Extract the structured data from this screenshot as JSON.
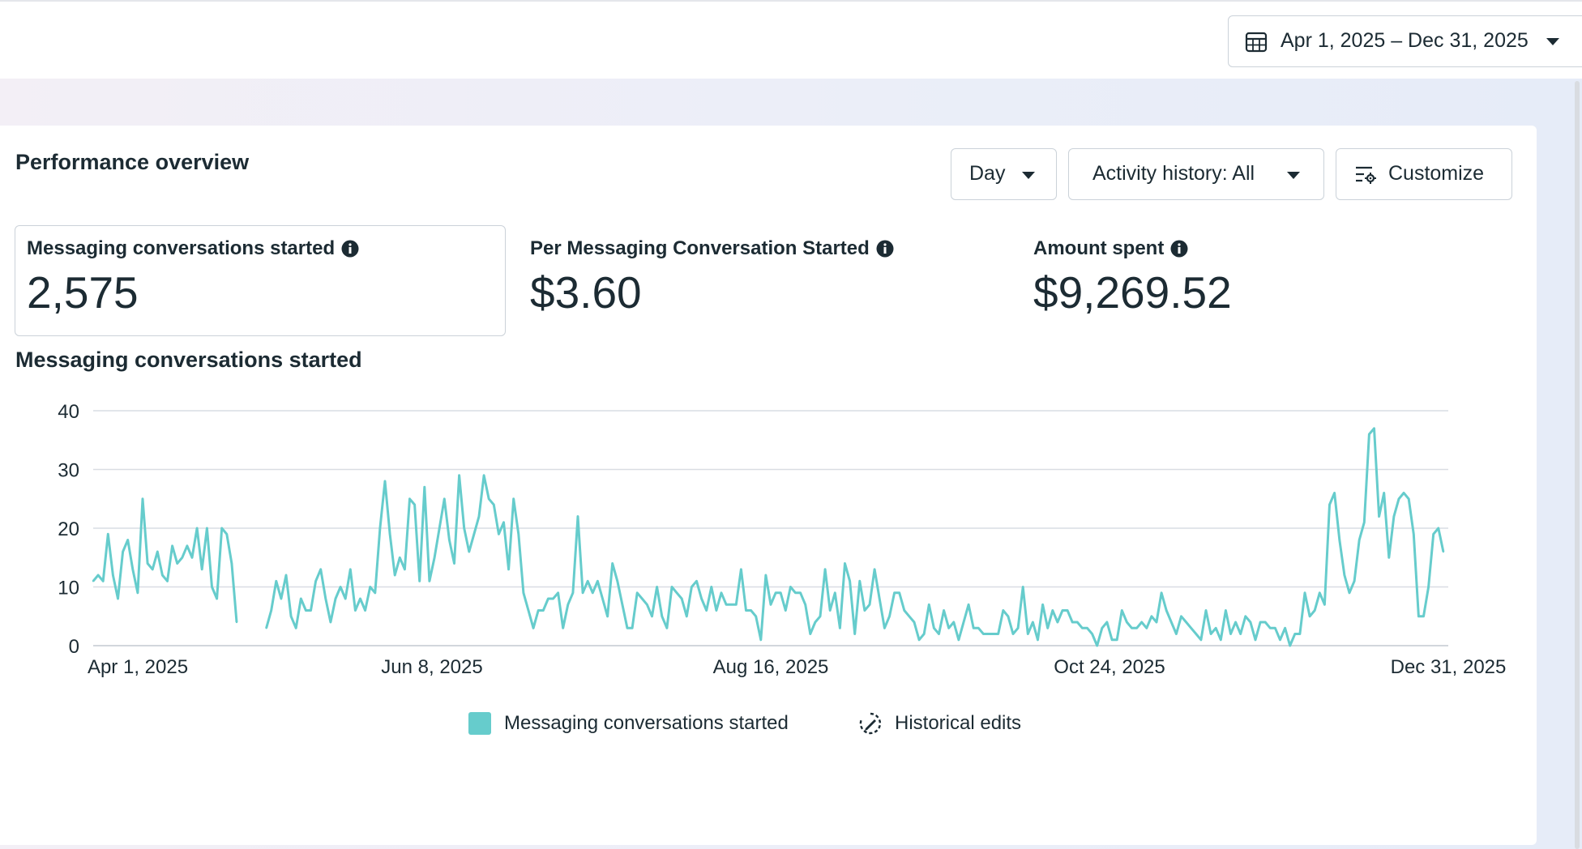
{
  "header": {
    "date_range_label": "Apr 1, 2025 – Dec 31, 2025",
    "calendar_icon": "calendar-icon",
    "caret_icon": "caret-down-icon"
  },
  "card": {
    "title": "Performance overview",
    "controls": {
      "granularity_label": "Day",
      "activity_label": "Activity history: All",
      "customize_label": "Customize",
      "customize_icon": "customize-sliders-icon"
    },
    "metrics": [
      {
        "label": "Messaging conversations started",
        "value": "2,575",
        "info_icon": "info-icon"
      },
      {
        "label": "Per Messaging Conversation Started",
        "value": "$3.60",
        "info_icon": "info-icon"
      },
      {
        "label": "Amount spent",
        "value": "$9,269.52",
        "info_icon": "info-icon"
      }
    ]
  },
  "chart_title": "Messaging conversations started",
  "legend": {
    "series_label": "Messaging conversations started",
    "historical_label": "Historical edits",
    "historical_icon": "historical-edits-icon"
  },
  "colors": {
    "series": "#66cccc",
    "grid": "#d9dde3",
    "text": "#1c2b33",
    "border": "#cbd2d9"
  },
  "chart_data": {
    "type": "line",
    "title": "Messaging conversations started",
    "xlabel": "",
    "ylabel": "",
    "ylim": [
      0,
      40
    ],
    "y_ticks": [
      0,
      10,
      20,
      30,
      40
    ],
    "x_tick_labels": [
      "Apr 1, 2025",
      "Jun 8, 2025",
      "Aug 16, 2025",
      "Oct 24, 2025",
      "Dec 31, 2025"
    ],
    "x_start": "2025-04-01",
    "grid": true,
    "legend_position": "bottom",
    "series": [
      {
        "name": "Messaging conversations started",
        "color": "#66cccc",
        "points": [
          [
            "2025-04-01",
            11
          ],
          [
            "2025-04-02",
            12
          ],
          [
            "2025-04-03",
            11
          ],
          [
            "2025-04-04",
            19
          ],
          [
            "2025-04-05",
            12
          ],
          [
            "2025-04-06",
            8
          ],
          [
            "2025-04-07",
            16
          ],
          [
            "2025-04-08",
            18
          ],
          [
            "2025-04-09",
            13
          ],
          [
            "2025-04-10",
            9
          ],
          [
            "2025-04-11",
            25
          ],
          [
            "2025-04-12",
            14
          ],
          [
            "2025-04-13",
            13
          ],
          [
            "2025-04-14",
            16
          ],
          [
            "2025-04-15",
            12
          ],
          [
            "2025-04-16",
            11
          ],
          [
            "2025-04-17",
            17
          ],
          [
            "2025-04-18",
            14
          ],
          [
            "2025-04-19",
            15
          ],
          [
            "2025-04-20",
            17
          ],
          [
            "2025-04-21",
            15
          ],
          [
            "2025-04-22",
            20
          ],
          [
            "2025-04-23",
            13
          ],
          [
            "2025-04-24",
            20
          ],
          [
            "2025-04-25",
            10
          ],
          [
            "2025-04-26",
            8
          ],
          [
            "2025-04-27",
            20
          ],
          [
            "2025-04-28",
            19
          ],
          [
            "2025-04-29",
            14
          ],
          [
            "2025-04-30",
            4
          ],
          [
            "2025-05-06",
            3
          ],
          [
            "2025-05-07",
            6
          ],
          [
            "2025-05-08",
            11
          ],
          [
            "2025-05-09",
            8
          ],
          [
            "2025-05-10",
            12
          ],
          [
            "2025-05-11",
            5
          ],
          [
            "2025-05-12",
            3
          ],
          [
            "2025-05-13",
            8
          ],
          [
            "2025-05-14",
            6
          ],
          [
            "2025-05-15",
            6
          ],
          [
            "2025-05-16",
            11
          ],
          [
            "2025-05-17",
            13
          ],
          [
            "2025-05-18",
            8
          ],
          [
            "2025-05-19",
            4
          ],
          [
            "2025-05-20",
            8
          ],
          [
            "2025-05-21",
            10
          ],
          [
            "2025-05-22",
            8
          ],
          [
            "2025-05-23",
            13
          ],
          [
            "2025-05-24",
            6
          ],
          [
            "2025-05-25",
            8
          ],
          [
            "2025-05-26",
            6
          ],
          [
            "2025-05-27",
            10
          ],
          [
            "2025-05-28",
            9
          ],
          [
            "2025-05-29",
            20
          ],
          [
            "2025-05-30",
            28
          ],
          [
            "2025-05-31",
            19
          ],
          [
            "2025-06-01",
            12
          ],
          [
            "2025-06-02",
            15
          ],
          [
            "2025-06-03",
            13
          ],
          [
            "2025-06-04",
            25
          ],
          [
            "2025-06-05",
            24
          ],
          [
            "2025-06-06",
            11
          ],
          [
            "2025-06-07",
            27
          ],
          [
            "2025-06-08",
            11
          ],
          [
            "2025-06-09",
            15
          ],
          [
            "2025-06-10",
            20
          ],
          [
            "2025-06-11",
            25
          ],
          [
            "2025-06-12",
            18
          ],
          [
            "2025-06-13",
            14
          ],
          [
            "2025-06-14",
            29
          ],
          [
            "2025-06-15",
            20
          ],
          [
            "2025-06-16",
            16
          ],
          [
            "2025-06-17",
            19
          ],
          [
            "2025-06-18",
            22
          ],
          [
            "2025-06-19",
            29
          ],
          [
            "2025-06-20",
            25
          ],
          [
            "2025-06-21",
            24
          ],
          [
            "2025-06-22",
            19
          ],
          [
            "2025-06-23",
            21
          ],
          [
            "2025-06-24",
            13
          ],
          [
            "2025-06-25",
            25
          ],
          [
            "2025-06-26",
            19
          ],
          [
            "2025-06-27",
            9
          ],
          [
            "2025-06-28",
            6
          ],
          [
            "2025-06-29",
            3
          ],
          [
            "2025-06-30",
            6
          ],
          [
            "2025-07-01",
            6
          ],
          [
            "2025-07-02",
            8
          ],
          [
            "2025-07-03",
            8
          ],
          [
            "2025-07-04",
            9
          ],
          [
            "2025-07-05",
            3
          ],
          [
            "2025-07-06",
            7
          ],
          [
            "2025-07-07",
            9
          ],
          [
            "2025-07-08",
            22
          ],
          [
            "2025-07-09",
            9
          ],
          [
            "2025-07-10",
            11
          ],
          [
            "2025-07-11",
            9
          ],
          [
            "2025-07-12",
            11
          ],
          [
            "2025-07-13",
            8
          ],
          [
            "2025-07-14",
            5
          ],
          [
            "2025-07-15",
            14
          ],
          [
            "2025-07-16",
            11
          ],
          [
            "2025-07-17",
            7
          ],
          [
            "2025-07-18",
            3
          ],
          [
            "2025-07-19",
            3
          ],
          [
            "2025-07-20",
            9
          ],
          [
            "2025-07-21",
            8
          ],
          [
            "2025-07-22",
            7
          ],
          [
            "2025-07-23",
            5
          ],
          [
            "2025-07-24",
            10
          ],
          [
            "2025-07-25",
            5
          ],
          [
            "2025-07-26",
            3
          ],
          [
            "2025-07-27",
            10
          ],
          [
            "2025-07-28",
            9
          ],
          [
            "2025-07-29",
            8
          ],
          [
            "2025-07-30",
            5
          ],
          [
            "2025-07-31",
            10
          ],
          [
            "2025-08-01",
            11
          ],
          [
            "2025-08-02",
            8
          ],
          [
            "2025-08-03",
            6
          ],
          [
            "2025-08-04",
            10
          ],
          [
            "2025-08-05",
            6
          ],
          [
            "2025-08-06",
            9
          ],
          [
            "2025-08-07",
            7
          ],
          [
            "2025-08-08",
            7
          ],
          [
            "2025-08-09",
            7
          ],
          [
            "2025-08-10",
            13
          ],
          [
            "2025-08-11",
            6
          ],
          [
            "2025-08-12",
            6
          ],
          [
            "2025-08-13",
            5
          ],
          [
            "2025-08-14",
            1
          ],
          [
            "2025-08-15",
            12
          ],
          [
            "2025-08-16",
            7
          ],
          [
            "2025-08-17",
            9
          ],
          [
            "2025-08-18",
            9
          ],
          [
            "2025-08-19",
            6
          ],
          [
            "2025-08-20",
            10
          ],
          [
            "2025-08-21",
            9
          ],
          [
            "2025-08-22",
            9
          ],
          [
            "2025-08-23",
            7
          ],
          [
            "2025-08-24",
            2
          ],
          [
            "2025-08-25",
            4
          ],
          [
            "2025-08-26",
            5
          ],
          [
            "2025-08-27",
            13
          ],
          [
            "2025-08-28",
            6
          ],
          [
            "2025-08-29",
            9
          ],
          [
            "2025-08-30",
            3
          ],
          [
            "2025-08-31",
            14
          ],
          [
            "2025-09-01",
            11
          ],
          [
            "2025-09-02",
            2
          ],
          [
            "2025-09-03",
            11
          ],
          [
            "2025-09-04",
            6
          ],
          [
            "2025-09-05",
            7
          ],
          [
            "2025-09-06",
            13
          ],
          [
            "2025-09-07",
            8
          ],
          [
            "2025-09-08",
            3
          ],
          [
            "2025-09-09",
            5
          ],
          [
            "2025-09-10",
            9
          ],
          [
            "2025-09-11",
            9
          ],
          [
            "2025-09-12",
            6
          ],
          [
            "2025-09-13",
            5
          ],
          [
            "2025-09-14",
            4
          ],
          [
            "2025-09-15",
            1
          ],
          [
            "2025-09-16",
            2
          ],
          [
            "2025-09-17",
            7
          ],
          [
            "2025-09-18",
            3
          ],
          [
            "2025-09-19",
            2
          ],
          [
            "2025-09-20",
            6
          ],
          [
            "2025-09-21",
            3
          ],
          [
            "2025-09-22",
            4
          ],
          [
            "2025-09-23",
            1
          ],
          [
            "2025-09-24",
            4
          ],
          [
            "2025-09-25",
            7
          ],
          [
            "2025-09-26",
            3
          ],
          [
            "2025-09-27",
            3
          ],
          [
            "2025-09-28",
            2
          ],
          [
            "2025-09-29",
            2
          ],
          [
            "2025-09-30",
            2
          ],
          [
            "2025-10-01",
            2
          ],
          [
            "2025-10-02",
            6
          ],
          [
            "2025-10-03",
            5
          ],
          [
            "2025-10-04",
            2
          ],
          [
            "2025-10-05",
            3
          ],
          [
            "2025-10-06",
            10
          ],
          [
            "2025-10-07",
            2
          ],
          [
            "2025-10-08",
            4
          ],
          [
            "2025-10-09",
            1
          ],
          [
            "2025-10-10",
            7
          ],
          [
            "2025-10-11",
            3
          ],
          [
            "2025-10-12",
            6
          ],
          [
            "2025-10-13",
            4
          ],
          [
            "2025-10-14",
            6
          ],
          [
            "2025-10-15",
            6
          ],
          [
            "2025-10-16",
            4
          ],
          [
            "2025-10-17",
            4
          ],
          [
            "2025-10-18",
            3
          ],
          [
            "2025-10-19",
            3
          ],
          [
            "2025-10-20",
            2
          ],
          [
            "2025-10-21",
            0
          ],
          [
            "2025-10-22",
            3
          ],
          [
            "2025-10-23",
            4
          ],
          [
            "2025-10-24",
            1
          ],
          [
            "2025-10-25",
            1
          ],
          [
            "2025-10-26",
            6
          ],
          [
            "2025-10-27",
            4
          ],
          [
            "2025-10-28",
            3
          ],
          [
            "2025-10-29",
            3
          ],
          [
            "2025-10-30",
            4
          ],
          [
            "2025-10-31",
            3
          ],
          [
            "2025-11-01",
            5
          ],
          [
            "2025-11-02",
            4
          ],
          [
            "2025-11-03",
            9
          ],
          [
            "2025-11-04",
            6
          ],
          [
            "2025-11-05",
            4
          ],
          [
            "2025-11-06",
            2
          ],
          [
            "2025-11-07",
            5
          ],
          [
            "2025-11-08",
            4
          ],
          [
            "2025-11-09",
            3
          ],
          [
            "2025-11-10",
            2
          ],
          [
            "2025-11-11",
            1
          ],
          [
            "2025-11-12",
            6
          ],
          [
            "2025-11-13",
            2
          ],
          [
            "2025-11-14",
            3
          ],
          [
            "2025-11-15",
            1
          ],
          [
            "2025-11-16",
            6
          ],
          [
            "2025-11-17",
            2
          ],
          [
            "2025-11-18",
            4
          ],
          [
            "2025-11-19",
            2
          ],
          [
            "2025-11-20",
            5
          ],
          [
            "2025-11-21",
            4
          ],
          [
            "2025-11-22",
            1
          ],
          [
            "2025-11-23",
            4
          ],
          [
            "2025-11-24",
            4
          ],
          [
            "2025-11-25",
            3
          ],
          [
            "2025-11-26",
            3
          ],
          [
            "2025-11-27",
            1
          ],
          [
            "2025-11-28",
            3
          ],
          [
            "2025-11-29",
            0
          ],
          [
            "2025-11-30",
            2
          ],
          [
            "2025-12-01",
            2
          ],
          [
            "2025-12-02",
            9
          ],
          [
            "2025-12-03",
            5
          ],
          [
            "2025-12-04",
            6
          ],
          [
            "2025-12-05",
            9
          ],
          [
            "2025-12-06",
            7
          ],
          [
            "2025-12-07",
            24
          ],
          [
            "2025-12-08",
            26
          ],
          [
            "2025-12-09",
            18
          ],
          [
            "2025-12-10",
            12
          ],
          [
            "2025-12-11",
            9
          ],
          [
            "2025-12-12",
            11
          ],
          [
            "2025-12-13",
            18
          ],
          [
            "2025-12-14",
            21
          ],
          [
            "2025-12-15",
            36
          ],
          [
            "2025-12-16",
            37
          ],
          [
            "2025-12-17",
            22
          ],
          [
            "2025-12-18",
            26
          ],
          [
            "2025-12-19",
            15
          ],
          [
            "2025-12-20",
            22
          ],
          [
            "2025-12-21",
            25
          ],
          [
            "2025-12-22",
            26
          ],
          [
            "2025-12-23",
            25
          ],
          [
            "2025-12-24",
            19
          ],
          [
            "2025-12-25",
            5
          ],
          [
            "2025-12-26",
            5
          ],
          [
            "2025-12-27",
            10
          ],
          [
            "2025-12-28",
            19
          ],
          [
            "2025-12-29",
            20
          ],
          [
            "2025-12-30",
            16
          ]
        ]
      }
    ]
  }
}
